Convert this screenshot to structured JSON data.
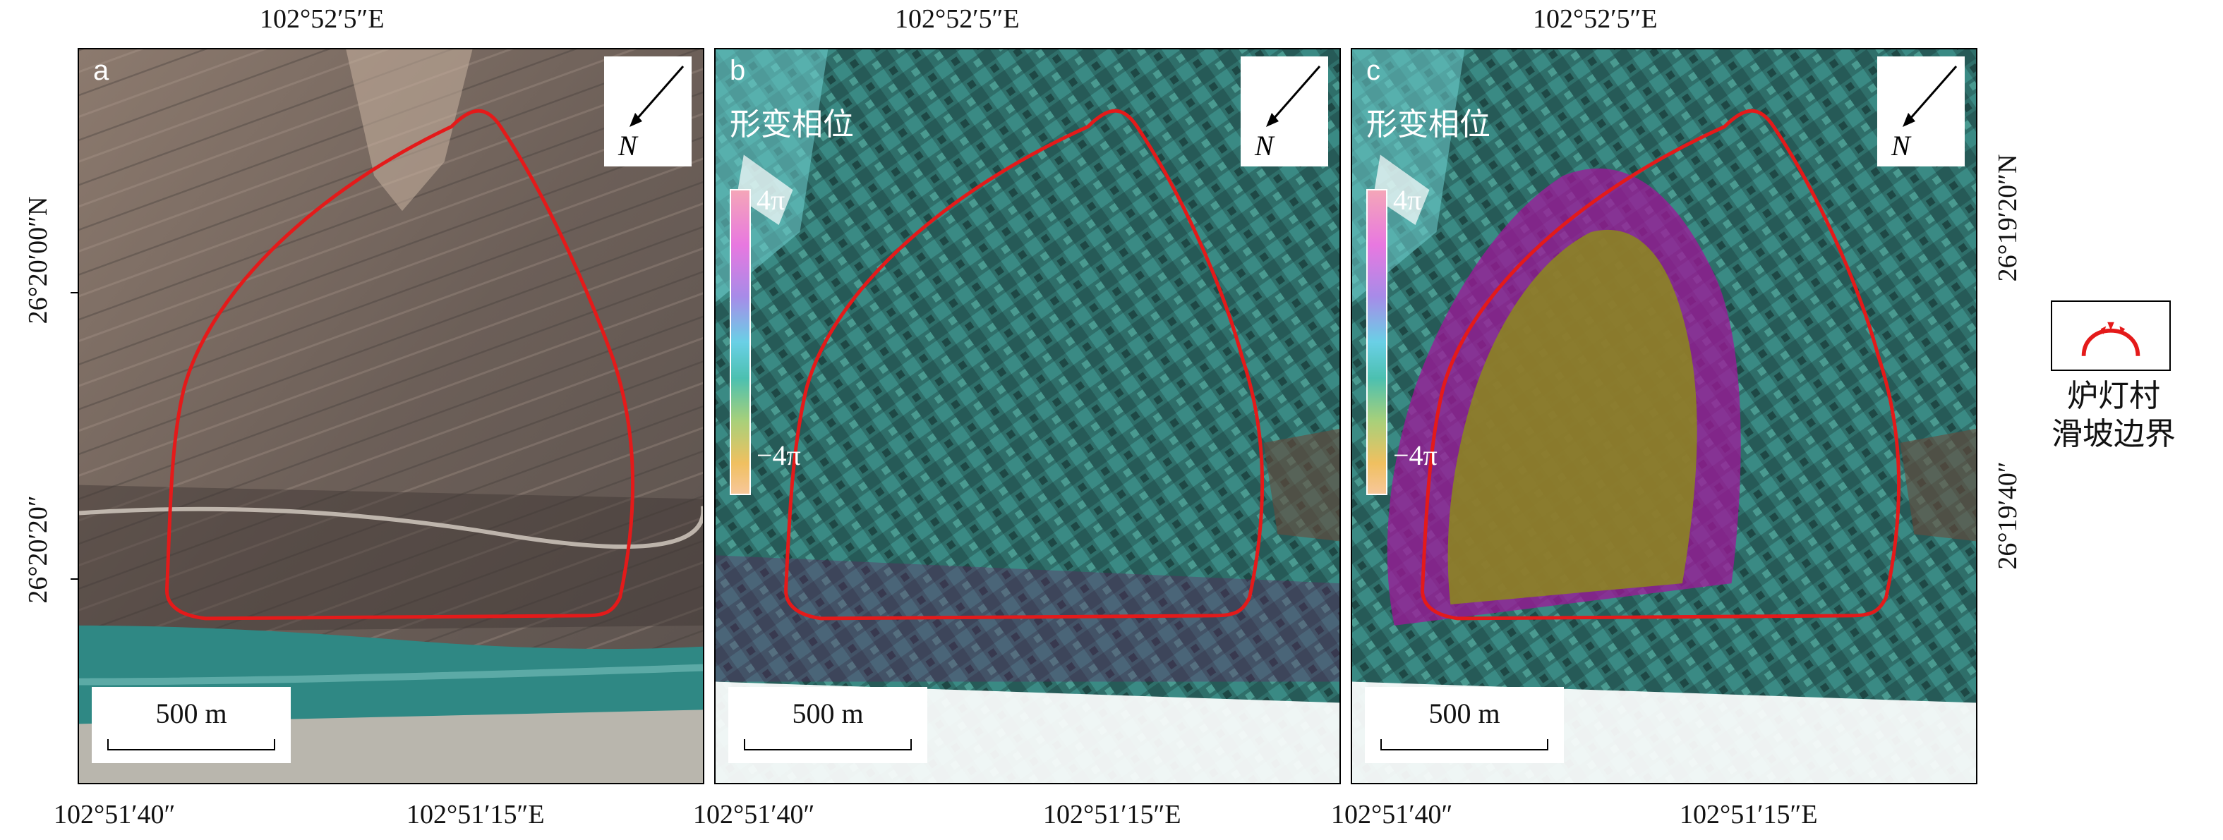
{
  "top_labels": [
    "102°52′5″E",
    "102°52′5″E",
    "102°52′5″E"
  ],
  "bottom_labels": {
    "left": [
      "102°51′40″",
      "102°51′40″",
      "102°51′40″"
    ],
    "right": [
      "102°51′15″E",
      "102°51′15″E",
      "102°51′15″E"
    ]
  },
  "left_axis": {
    "upper": "26°20′00″N",
    "lower": "26°20′20″"
  },
  "right_axis": {
    "upper": "26°19′20″N",
    "lower": "26°19′40″"
  },
  "panels": [
    {
      "label": "a",
      "scale": "500 m"
    },
    {
      "label": "b",
      "scale": "500 m",
      "legend_title": "形变相位",
      "cb_max": "4π",
      "cb_min": "−4π"
    },
    {
      "label": "c",
      "scale": "500 m",
      "legend_title": "形变相位",
      "cb_max": "4π",
      "cb_min": "−4π"
    }
  ],
  "legend": {
    "line1": "炉灯村",
    "line2": "滑坡边界",
    "color": "#e01010"
  },
  "colors": {
    "boundary": "#e41a1a",
    "river": "#2e8f8a",
    "phase_base": "#2f6f6a",
    "magenta": "#a0159a",
    "olive": "#8c8a1c"
  }
}
